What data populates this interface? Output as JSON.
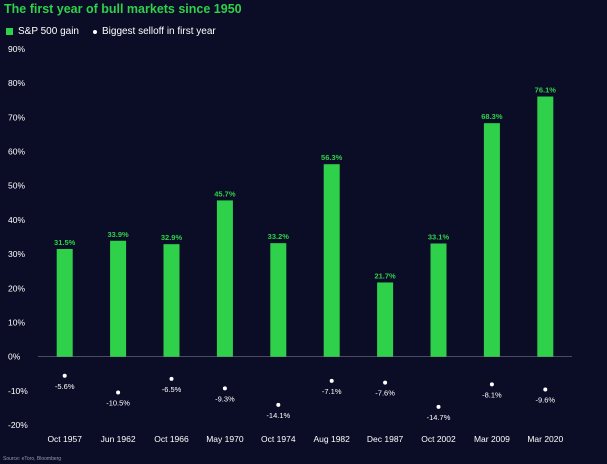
{
  "chart_data": {
    "type": "bar",
    "title": "The first year of bull markets since 1950",
    "categories": [
      "Oct 1957",
      "Jun 1962",
      "Oct 1966",
      "May 1970",
      "Oct 1974",
      "Aug 1982",
      "Dec 1987",
      "Oct 2002",
      "Mar 2009",
      "Mar 2020"
    ],
    "series": [
      {
        "name": "S&P 500 gain",
        "kind": "bar",
        "values": [
          31.5,
          33.9,
          32.9,
          45.7,
          33.2,
          56.3,
          21.7,
          33.1,
          68.3,
          76.1
        ],
        "labels": [
          "31.5%",
          "33.9%",
          "32.9%",
          "45.7%",
          "33.2%",
          "56.3%",
          "21.7%",
          "33.1%",
          "68.3%",
          "76.1%"
        ]
      },
      {
        "name": "Biggest selloff in first year",
        "kind": "dot",
        "values": [
          -5.6,
          -10.5,
          -6.5,
          -9.3,
          -14.1,
          -7.1,
          -7.6,
          -14.7,
          -8.1,
          -9.6
        ],
        "labels": [
          "-5.6%",
          "-10.5%",
          "-6.5%",
          "-9.3%",
          "-14.1%",
          "-7.1%",
          "-7.6%",
          "-14.7%",
          "-8.1%",
          "-9.6%"
        ]
      }
    ],
    "yticks": [
      90,
      80,
      70,
      60,
      50,
      40,
      30,
      20,
      10,
      0,
      -10,
      -20
    ],
    "ytick_labels": [
      "90%",
      "80%",
      "70%",
      "60%",
      "50%",
      "40%",
      "30%",
      "20%",
      "10%",
      "0%",
      "-10%",
      "-20%"
    ],
    "ylim": [
      -20,
      90
    ],
    "xlabel": "",
    "ylabel": "",
    "colors": {
      "bar": "#2fd14a",
      "dot": "#ffffff",
      "background": "#0b0c26"
    },
    "legend_labels": {
      "bar": "S&P 500 gain",
      "dot": "Biggest selloff in first year"
    },
    "source": "Source: eToro, Bloomberg"
  }
}
